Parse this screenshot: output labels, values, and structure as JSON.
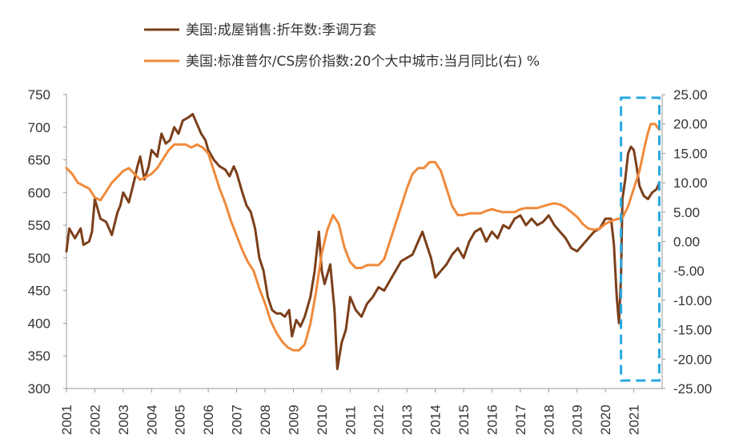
{
  "chart_data": {
    "type": "line",
    "legend": [
      {
        "name": "美国:成屋销售:折年数:季调万套",
        "color": "#7b3f1a"
      },
      {
        "name": "美国:标准普尔/CS房价指数:20个大中城市:当月同比(右) %",
        "color": "#f08a3c"
      }
    ],
    "legend_placement": "top",
    "grid": false,
    "x_ticks": [
      "2001",
      "2002",
      "2003",
      "2004",
      "2005",
      "2006",
      "2007",
      "2008",
      "2009",
      "2010",
      "2011",
      "2012",
      "2013",
      "2014",
      "2015",
      "2016",
      "2017",
      "2018",
      "2019",
      "2020",
      "2021"
    ],
    "xlim": [
      2001,
      2022
    ],
    "y_left": {
      "ylim": [
        300,
        750
      ],
      "ticks": [
        "300",
        "350",
        "400",
        "450",
        "500",
        "550",
        "600",
        "650",
        "700",
        "750"
      ]
    },
    "y_right": {
      "ylim": [
        -25,
        25
      ],
      "ticks": [
        "-25.00",
        "-20.00",
        "-15.00",
        "-10.00",
        "-5.00",
        "0.00",
        "5.00",
        "10.00",
        "15.00",
        "20.00",
        "25.00"
      ]
    },
    "highlight_box": {
      "x_range": [
        2020.55,
        2021.9
      ],
      "color": "#29a8e0",
      "style": "dashed"
    },
    "series": [
      {
        "name": "美国:成屋销售:折年数:季调万套",
        "axis": "left",
        "color": "#7b3f1a",
        "points": [
          [
            2001.0,
            510
          ],
          [
            2001.1,
            545
          ],
          [
            2001.3,
            530
          ],
          [
            2001.5,
            545
          ],
          [
            2001.6,
            520
          ],
          [
            2001.8,
            525
          ],
          [
            2001.9,
            540
          ],
          [
            2002.0,
            590
          ],
          [
            2002.2,
            560
          ],
          [
            2002.4,
            555
          ],
          [
            2002.6,
            535
          ],
          [
            2002.8,
            570
          ],
          [
            2002.9,
            580
          ],
          [
            2003.0,
            600
          ],
          [
            2003.2,
            585
          ],
          [
            2003.4,
            620
          ],
          [
            2003.5,
            640
          ],
          [
            2003.6,
            655
          ],
          [
            2003.75,
            620
          ],
          [
            2003.9,
            640
          ],
          [
            2004.0,
            665
          ],
          [
            2004.2,
            655
          ],
          [
            2004.35,
            690
          ],
          [
            2004.5,
            675
          ],
          [
            2004.65,
            680
          ],
          [
            2004.8,
            700
          ],
          [
            2004.95,
            690
          ],
          [
            2005.1,
            710
          ],
          [
            2005.3,
            715
          ],
          [
            2005.45,
            720
          ],
          [
            2005.6,
            705
          ],
          [
            2005.75,
            690
          ],
          [
            2005.9,
            680
          ],
          [
            2006.0,
            665
          ],
          [
            2006.2,
            650
          ],
          [
            2006.4,
            640
          ],
          [
            2006.6,
            635
          ],
          [
            2006.75,
            625
          ],
          [
            2006.9,
            640
          ],
          [
            2007.0,
            630
          ],
          [
            2007.2,
            600
          ],
          [
            2007.35,
            580
          ],
          [
            2007.5,
            570
          ],
          [
            2007.65,
            545
          ],
          [
            2007.8,
            500
          ],
          [
            2007.95,
            480
          ],
          [
            2008.1,
            440
          ],
          [
            2008.25,
            420
          ],
          [
            2008.4,
            415
          ],
          [
            2008.55,
            415
          ],
          [
            2008.7,
            410
          ],
          [
            2008.85,
            420
          ],
          [
            2008.95,
            380
          ],
          [
            2009.1,
            405
          ],
          [
            2009.25,
            395
          ],
          [
            2009.4,
            410
          ],
          [
            2009.6,
            440
          ],
          [
            2009.75,
            480
          ],
          [
            2009.9,
            540
          ],
          [
            2010.0,
            480
          ],
          [
            2010.1,
            460
          ],
          [
            2010.3,
            490
          ],
          [
            2010.45,
            420
          ],
          [
            2010.55,
            330
          ],
          [
            2010.7,
            370
          ],
          [
            2010.85,
            390
          ],
          [
            2011.0,
            440
          ],
          [
            2011.2,
            420
          ],
          [
            2011.4,
            410
          ],
          [
            2011.6,
            430
          ],
          [
            2011.8,
            440
          ],
          [
            2012.0,
            455
          ],
          [
            2012.2,
            450
          ],
          [
            2012.4,
            465
          ],
          [
            2012.6,
            480
          ],
          [
            2012.8,
            495
          ],
          [
            2013.0,
            500
          ],
          [
            2013.2,
            505
          ],
          [
            2013.4,
            525
          ],
          [
            2013.55,
            540
          ],
          [
            2013.7,
            520
          ],
          [
            2013.85,
            500
          ],
          [
            2014.0,
            470
          ],
          [
            2014.2,
            480
          ],
          [
            2014.4,
            490
          ],
          [
            2014.6,
            505
          ],
          [
            2014.8,
            515
          ],
          [
            2015.0,
            500
          ],
          [
            2015.2,
            525
          ],
          [
            2015.4,
            540
          ],
          [
            2015.6,
            545
          ],
          [
            2015.8,
            525
          ],
          [
            2016.0,
            540
          ],
          [
            2016.2,
            530
          ],
          [
            2016.4,
            550
          ],
          [
            2016.6,
            545
          ],
          [
            2016.8,
            560
          ],
          [
            2017.0,
            565
          ],
          [
            2017.2,
            550
          ],
          [
            2017.4,
            560
          ],
          [
            2017.6,
            550
          ],
          [
            2017.8,
            555
          ],
          [
            2018.0,
            565
          ],
          [
            2018.2,
            550
          ],
          [
            2018.4,
            540
          ],
          [
            2018.6,
            530
          ],
          [
            2018.8,
            515
          ],
          [
            2019.0,
            510
          ],
          [
            2019.2,
            520
          ],
          [
            2019.4,
            530
          ],
          [
            2019.6,
            540
          ],
          [
            2019.8,
            545
          ],
          [
            2020.0,
            560
          ],
          [
            2020.2,
            560
          ],
          [
            2020.3,
            520
          ],
          [
            2020.4,
            440
          ],
          [
            2020.48,
            400
          ],
          [
            2020.55,
            470
          ],
          [
            2020.6,
            590
          ],
          [
            2020.7,
            620
          ],
          [
            2020.8,
            660
          ],
          [
            2020.9,
            670
          ],
          [
            2021.0,
            665
          ],
          [
            2021.1,
            640
          ],
          [
            2021.2,
            610
          ],
          [
            2021.35,
            595
          ],
          [
            2021.5,
            590
          ],
          [
            2021.65,
            600
          ],
          [
            2021.8,
            605
          ],
          [
            2021.9,
            615
          ]
        ]
      },
      {
        "name": "美国:标准普尔/CS房价指数:20个大中城市:当月同比(右) %",
        "axis": "right",
        "color": "#f08a3c",
        "points": [
          [
            2001.0,
            12.5
          ],
          [
            2001.2,
            11.5
          ],
          [
            2001.4,
            10.0
          ],
          [
            2001.6,
            9.5
          ],
          [
            2001.8,
            9.0
          ],
          [
            2002.0,
            7.5
          ],
          [
            2002.2,
            7.0
          ],
          [
            2002.4,
            8.5
          ],
          [
            2002.6,
            10.0
          ],
          [
            2002.8,
            11.0
          ],
          [
            2003.0,
            12.0
          ],
          [
            2003.2,
            12.5
          ],
          [
            2003.4,
            11.5
          ],
          [
            2003.6,
            10.5
          ],
          [
            2003.8,
            11.0
          ],
          [
            2004.0,
            11.5
          ],
          [
            2004.2,
            12.5
          ],
          [
            2004.4,
            14.0
          ],
          [
            2004.6,
            15.5
          ],
          [
            2004.8,
            16.5
          ],
          [
            2005.0,
            16.5
          ],
          [
            2005.2,
            16.5
          ],
          [
            2005.4,
            16.0
          ],
          [
            2005.6,
            16.5
          ],
          [
            2005.8,
            16.0
          ],
          [
            2006.0,
            15.0
          ],
          [
            2006.2,
            12.0
          ],
          [
            2006.4,
            9.0
          ],
          [
            2006.6,
            6.5
          ],
          [
            2006.8,
            3.5
          ],
          [
            2007.0,
            1.0
          ],
          [
            2007.2,
            -1.5
          ],
          [
            2007.4,
            -3.5
          ],
          [
            2007.6,
            -5.0
          ],
          [
            2007.8,
            -8.0
          ],
          [
            2008.0,
            -10.5
          ],
          [
            2008.2,
            -13.5
          ],
          [
            2008.4,
            -15.5
          ],
          [
            2008.6,
            -17.0
          ],
          [
            2008.8,
            -18.0
          ],
          [
            2009.0,
            -18.5
          ],
          [
            2009.2,
            -18.5
          ],
          [
            2009.4,
            -17.5
          ],
          [
            2009.6,
            -14.0
          ],
          [
            2009.8,
            -8.5
          ],
          [
            2010.0,
            -2.0
          ],
          [
            2010.2,
            2.0
          ],
          [
            2010.4,
            4.5
          ],
          [
            2010.6,
            3.0
          ],
          [
            2010.8,
            -1.0
          ],
          [
            2011.0,
            -3.5
          ],
          [
            2011.2,
            -4.5
          ],
          [
            2011.4,
            -4.5
          ],
          [
            2011.6,
            -4.0
          ],
          [
            2011.8,
            -4.0
          ],
          [
            2012.0,
            -4.0
          ],
          [
            2012.2,
            -3.0
          ],
          [
            2012.4,
            0.0
          ],
          [
            2012.6,
            3.0
          ],
          [
            2012.8,
            6.0
          ],
          [
            2013.0,
            9.0
          ],
          [
            2013.2,
            11.5
          ],
          [
            2013.4,
            12.5
          ],
          [
            2013.6,
            12.5
          ],
          [
            2013.8,
            13.5
          ],
          [
            2014.0,
            13.5
          ],
          [
            2014.2,
            12.0
          ],
          [
            2014.4,
            9.0
          ],
          [
            2014.6,
            6.0
          ],
          [
            2014.8,
            4.5
          ],
          [
            2015.0,
            4.5
          ],
          [
            2015.2,
            4.8
          ],
          [
            2015.4,
            4.8
          ],
          [
            2015.6,
            4.8
          ],
          [
            2015.8,
            5.2
          ],
          [
            2016.0,
            5.5
          ],
          [
            2016.2,
            5.2
          ],
          [
            2016.4,
            5.0
          ],
          [
            2016.6,
            5.0
          ],
          [
            2016.8,
            5.0
          ],
          [
            2017.0,
            5.5
          ],
          [
            2017.2,
            5.7
          ],
          [
            2017.4,
            5.7
          ],
          [
            2017.6,
            5.7
          ],
          [
            2017.8,
            6.0
          ],
          [
            2018.0,
            6.3
          ],
          [
            2018.2,
            6.5
          ],
          [
            2018.4,
            6.3
          ],
          [
            2018.6,
            5.8
          ],
          [
            2018.8,
            5.0
          ],
          [
            2019.0,
            4.2
          ],
          [
            2019.2,
            3.0
          ],
          [
            2019.4,
            2.2
          ],
          [
            2019.6,
            2.0
          ],
          [
            2019.8,
            2.2
          ],
          [
            2020.0,
            3.0
          ],
          [
            2020.2,
            3.5
          ],
          [
            2020.4,
            3.8
          ],
          [
            2020.6,
            4.0
          ],
          [
            2020.8,
            6.0
          ],
          [
            2021.0,
            9.0
          ],
          [
            2021.2,
            12.0
          ],
          [
            2021.4,
            16.5
          ],
          [
            2021.5,
            18.5
          ],
          [
            2021.6,
            20.0
          ],
          [
            2021.75,
            20.0
          ],
          [
            2021.9,
            19.0
          ]
        ]
      }
    ]
  }
}
